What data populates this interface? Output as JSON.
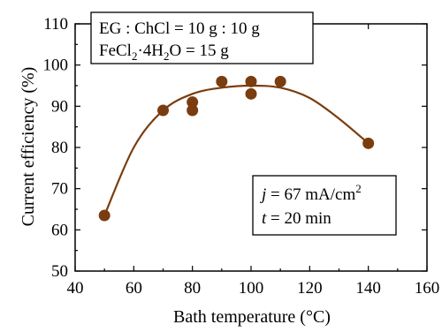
{
  "chart_data": {
    "type": "scatter",
    "xlabel": "Bath temperature (°C)",
    "ylabel": "Current efficiency (%)",
    "xlim": [
      40,
      160
    ],
    "ylim": [
      50,
      110
    ],
    "xticks": [
      40,
      60,
      80,
      100,
      120,
      140,
      160
    ],
    "yticks": [
      50,
      60,
      70,
      80,
      90,
      100,
      110
    ],
    "grid": false,
    "marker_color": "#7a3d0f",
    "line_color": "#7a3d0f",
    "points": [
      {
        "x": 50,
        "y": 63.5
      },
      {
        "x": 70,
        "y": 89
      },
      {
        "x": 80,
        "y": 89
      },
      {
        "x": 80,
        "y": 91
      },
      {
        "x": 90,
        "y": 96
      },
      {
        "x": 100,
        "y": 96
      },
      {
        "x": 100,
        "y": 93
      },
      {
        "x": 110,
        "y": 96
      },
      {
        "x": 140,
        "y": 81
      }
    ],
    "fit_curve": [
      {
        "x": 50,
        "y": 63.5
      },
      {
        "x": 60,
        "y": 80
      },
      {
        "x": 70,
        "y": 89
      },
      {
        "x": 80,
        "y": 93
      },
      {
        "x": 90,
        "y": 94.5
      },
      {
        "x": 100,
        "y": 95
      },
      {
        "x": 110,
        "y": 94.5
      },
      {
        "x": 120,
        "y": 92
      },
      {
        "x": 130,
        "y": 87
      },
      {
        "x": 140,
        "y": 81
      }
    ],
    "annotations": {
      "composition_line1": "EG : ChCl = 10 g : 10 g",
      "composition_line2_prefix": "FeCl",
      "composition_line2_sub1": "2",
      "composition_line2_mid": "·4H",
      "composition_line2_sub2": "2",
      "composition_line2_suffix": "O = 15 g",
      "conditions_line1_var": "j",
      "conditions_line1_value": " = 67 mA/cm",
      "conditions_line1_sup": "2",
      "conditions_line2_var": "t",
      "conditions_line2_value": " = 20 min"
    }
  }
}
